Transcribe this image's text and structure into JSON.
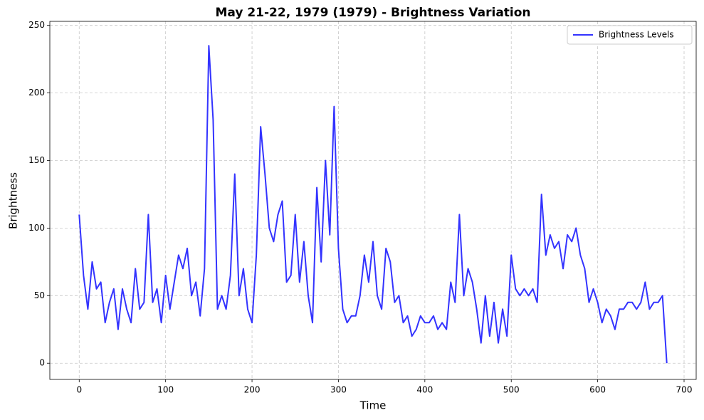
{
  "chart_data": {
    "type": "line",
    "title": "May 21-22, 1979 (1979) - Brightness Variation",
    "xlabel": "Time",
    "ylabel": "Brightness",
    "x": [
      0,
      5,
      10,
      15,
      20,
      25,
      30,
      35,
      40,
      45,
      50,
      55,
      60,
      65,
      70,
      75,
      80,
      85,
      90,
      95,
      100,
      105,
      110,
      115,
      120,
      125,
      130,
      135,
      140,
      145,
      150,
      155,
      160,
      165,
      170,
      175,
      180,
      185,
      190,
      195,
      200,
      205,
      210,
      215,
      220,
      225,
      230,
      235,
      240,
      245,
      250,
      255,
      260,
      265,
      270,
      275,
      280,
      285,
      290,
      295,
      300,
      305,
      310,
      315,
      320,
      325,
      330,
      335,
      340,
      345,
      350,
      355,
      360,
      365,
      370,
      375,
      380,
      385,
      390,
      395,
      400,
      405,
      410,
      415,
      420,
      425,
      430,
      435,
      440,
      445,
      450,
      455,
      460,
      465,
      470,
      475,
      480,
      485,
      490,
      495,
      500,
      505,
      510,
      515,
      520,
      525,
      530,
      535,
      540,
      545,
      550,
      555,
      560,
      565,
      570,
      575,
      580,
      585,
      590,
      595,
      600,
      605,
      610,
      615,
      620,
      625,
      630,
      635,
      640,
      645,
      650,
      655,
      660,
      665,
      670,
      675,
      680
    ],
    "series": [
      {
        "name": "Brightness Levels",
        "color": "#3333ff",
        "values": [
          110,
          65,
          40,
          75,
          55,
          60,
          30,
          45,
          55,
          25,
          55,
          40,
          30,
          70,
          40,
          45,
          110,
          45,
          55,
          30,
          65,
          40,
          60,
          80,
          70,
          85,
          50,
          60,
          35,
          70,
          235,
          180,
          40,
          50,
          40,
          65,
          140,
          50,
          70,
          40,
          30,
          80,
          175,
          140,
          100,
          90,
          110,
          120,
          60,
          65,
          110,
          60,
          90,
          50,
          30,
          130,
          75,
          150,
          95,
          190,
          85,
          40,
          30,
          35,
          35,
          50,
          80,
          60,
          90,
          50,
          40,
          85,
          75,
          45,
          50,
          30,
          35,
          20,
          25,
          35,
          30,
          30,
          35,
          25,
          30,
          25,
          60,
          45,
          110,
          50,
          70,
          60,
          40,
          15,
          50,
          20,
          45,
          15,
          40,
          20,
          80,
          55,
          50,
          55,
          50,
          55,
          45,
          125,
          80,
          95,
          85,
          90,
          70,
          95,
          90,
          100,
          80,
          70,
          45,
          55,
          45,
          30,
          40,
          35,
          25,
          40,
          40,
          45,
          45,
          40,
          45,
          60,
          40,
          45,
          45,
          50,
          0
        ]
      }
    ],
    "xlim": [
      -34,
      714
    ],
    "ylim": [
      -12,
      253
    ],
    "xticks": [
      0,
      100,
      200,
      300,
      400,
      500,
      600,
      700
    ],
    "yticks": [
      0,
      50,
      100,
      150,
      200,
      250
    ],
    "grid": true,
    "legend": "upper right"
  }
}
